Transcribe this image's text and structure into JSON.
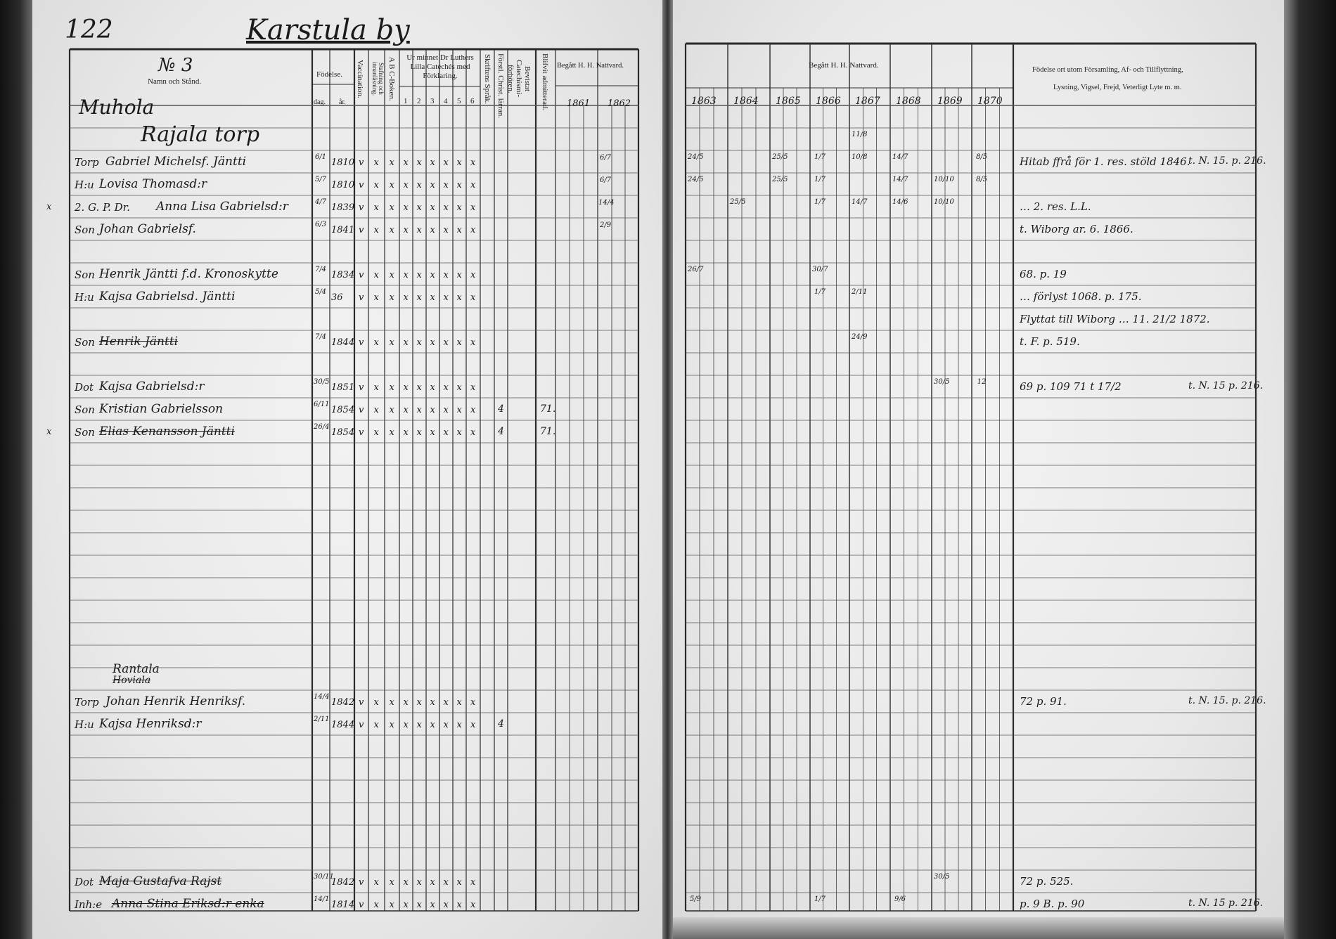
{
  "left_page": {
    "page_number": "122",
    "village_title": "Karstula by",
    "section_number": "№ 3",
    "headers": {
      "name_col": "Namn och Stånd.",
      "birth": "Födelse.",
      "day": "dag.",
      "year": "år.",
      "vaccination": "Vaccination.",
      "reading": "Stafning och innanläsning.",
      "abc_book": "A B C-Boken.",
      "catechism": "Ur minnet Dr Luthers Lilla Catechés med Förklaring.",
      "catechism_parts": [
        "1",
        "2",
        "3",
        "4",
        "5",
        "6"
      ],
      "scripture": "Skriftens Språk.",
      "christianity": "Förstl. Christ. lärran.",
      "examinations": "Bevistat Catechismi-förhören.",
      "admitted": "Blifvit admitterad.",
      "communion": "Begått H. H. Nattvard.",
      "years": [
        "1861",
        "1862"
      ]
    }
  },
  "right_page": {
    "headers": {
      "communion": "Begått H. H. Nattvard.",
      "years": [
        "1863",
        "1864",
        "1865",
        "1866",
        "1867",
        "1868",
        "1869",
        "1870"
      ],
      "notes_line1": "Födelse ort utom Församling, Af- och Tillflyttning,",
      "notes_line2": "Lysning, Vigsel, Frejd, Veterligt Lyte m. m."
    }
  },
  "entries": [
    {
      "heading": "Muhola"
    },
    {
      "heading": "Rajala torp",
      "communion": {
        "1867": "11/8"
      }
    },
    {
      "title": "Torp",
      "name": "Gabriel Michelsf. Jäntti",
      "day": "6/1",
      "year": "1810",
      "marks": [
        "v",
        "x",
        "x",
        "x",
        "x",
        "x",
        "x",
        "x",
        "x"
      ],
      "y1862": "6/7",
      "communion": {
        "1863": "24/5",
        "1865": "25/5",
        "1866": "1/7",
        "1867": "10/8",
        "1868": "14/7",
        "1870": "8/5"
      },
      "note": "Hitab ffrå för 1. res. stöld 1846.",
      "note_ref": "t. N. 15. p. 216."
    },
    {
      "title": "H:u",
      "name": "Lovisa Thomasd:r",
      "day": "5/7",
      "year": "1810",
      "marks": [
        "v",
        "x",
        "x",
        "x",
        "x",
        "x",
        "x",
        "x",
        "x"
      ],
      "y1862": "6/7",
      "communion": {
        "1863": "24/5",
        "1865": "25/5",
        "1866": "1/7",
        "1868": "14/7",
        "1869": "10/10",
        "1870": "8/5"
      }
    },
    {
      "prefix": "x",
      "title": "2. G. P. Dr.",
      "name": "Anna Lisa Gabrielsd:r",
      "day": "4/7",
      "year": "1839",
      "marks": [
        "v",
        "x",
        "x",
        "x",
        "x",
        "x",
        "x",
        "x",
        "x"
      ],
      "y1862": "14/4",
      "communion": {
        "1864": "25/5",
        "1866": "1/7",
        "1867": "14/7",
        "1868": "14/6",
        "1869": "10/10"
      },
      "note": "… 2. res. L.L."
    },
    {
      "title": "Son",
      "name": "Johan Gabrielsf.",
      "day": "6/3",
      "year": "1841",
      "marks": [
        "v",
        "x",
        "x",
        "x",
        "x",
        "x",
        "x",
        "x",
        "x"
      ],
      "y1862": "2/9",
      "note": "t. Wiborg ar. 6. 1866."
    },
    {},
    {
      "title": "Son",
      "name": "Henrik Jäntti f.d. Kronoskytte",
      "day": "7/4",
      "year": "1834",
      "marks": [
        "v",
        "x",
        "x",
        "x",
        "x",
        "x",
        "x",
        "x",
        "x"
      ],
      "communion": {
        "1863": "26/7",
        "1866": "30/7"
      },
      "note": "68. p. 19"
    },
    {
      "title": "H:u",
      "name": "Kajsa Gabrielsd. Jäntti",
      "day": "5/4",
      "year": "36",
      "marks": [
        "v",
        "x",
        "x",
        "x",
        "x",
        "x",
        "x",
        "x",
        "x"
      ],
      "communion": {
        "1866": "1/7",
        "1867": "2/11"
      },
      "note": "… förlyst 1068. p. 175."
    },
    {
      "note": "Flyttat till Wiborg … 11. 21/2 1872."
    },
    {
      "title": "Son",
      "name": "Henrik Jäntti",
      "day": "7/4",
      "year": "1844",
      "marks": [
        "v",
        "x",
        "x",
        "x",
        "x",
        "x",
        "x",
        "x",
        "x"
      ],
      "struck": true,
      "communion": {
        "1867": "24/9"
      },
      "note": "t. F. p. 519."
    },
    {},
    {
      "title": "Dot",
      "name": "Kajsa Gabrielsd:r",
      "day": "30/5",
      "year": "1851",
      "marks": [
        "v",
        "x",
        "x",
        "x",
        "x",
        "x",
        "x",
        "x",
        "x"
      ],
      "communion": {
        "1869": "30/5",
        "1870": "12"
      },
      "note": "69 p. 109  71 t 17/2",
      "note_ref": "t. N. 15 p. 216."
    },
    {
      "title": "Son",
      "name": "Kristian Gabrielsson",
      "day": "6/11",
      "year": "1854",
      "marks": [
        "v",
        "x",
        "x",
        "x",
        "x",
        "x",
        "x",
        "x",
        "x"
      ],
      "christianity": "4",
      "admitted": "71."
    },
    {
      "prefix": "x",
      "title": "Son",
      "name": "Elias Kenansson Jäntti",
      "day": "26/4",
      "year": "1854",
      "marks": [
        "v",
        "x",
        "x",
        "x",
        "x",
        "x",
        "x",
        "x",
        "x"
      ],
      "christianity": "4",
      "admitted": "71.",
      "struck": true
    },
    {},
    {},
    {},
    {},
    {},
    {},
    {},
    {},
    {},
    {},
    {
      "heading": "Rantala",
      "heading_struck": "Hoviala"
    },
    {
      "title": "Torp",
      "name": "Johan Henrik Henriksf.",
      "day": "14/4",
      "year": "1842",
      "marks": [
        "v",
        "x",
        "x",
        "x",
        "x",
        "x",
        "x",
        "x",
        "x"
      ],
      "note": "72 p. 91.",
      "note_ref": "t. N. 15. p. 216."
    },
    {
      "title": "H:u",
      "name": "Kajsa Henriksd:r",
      "day": "2/11",
      "year": "1844",
      "marks": [
        "v",
        "x",
        "x",
        "x",
        "x",
        "x",
        "x",
        "x",
        "x"
      ],
      "christianity": "4"
    },
    {},
    {},
    {},
    {},
    {},
    {},
    {
      "title": "Dot",
      "name": "Maja Gustafva Rajst",
      "day": "30/11",
      "year": "1842",
      "marks": [
        "v",
        "x",
        "x",
        "x",
        "x",
        "x",
        "x",
        "x",
        "x"
      ],
      "struck": true,
      "communion": {
        "1869": "30/5"
      },
      "note": "72 p. 525."
    },
    {
      "title": "Inh:e",
      "name": "Anna Stina Eriksd:r enka",
      "day": "14/1",
      "year": "1814",
      "marks": [
        "v",
        "x",
        "x",
        "x",
        "x",
        "x",
        "x",
        "x",
        "x"
      ],
      "struck": true,
      "communion": {
        "1863": "5/9",
        "1866": "1/7",
        "1868": "9/6"
      },
      "note": "p. 9 B. p. 90",
      "note_ref": "t. N. 15 p. 216."
    }
  ]
}
